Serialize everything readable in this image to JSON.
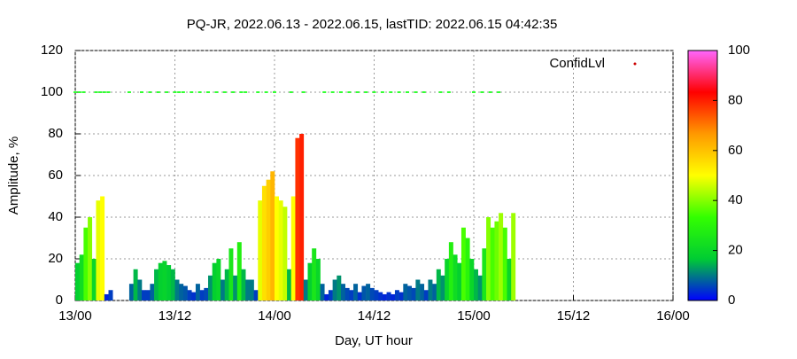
{
  "chart_data": {
    "type": "bar",
    "title": "PQ-JR, 2022.06.13 - 2022.06.15, lastTID: 2022.06.15 04:42:35",
    "xlabel": "Day, UT hour",
    "ylabel": "Amplitude, %",
    "x": [
      0,
      0.5,
      1,
      1.5,
      2,
      2.5,
      3,
      3.5,
      4,
      4.5,
      5,
      5.5,
      6,
      6.5,
      7,
      7.5,
      8,
      8.5,
      9,
      9.5,
      10,
      10.5,
      11,
      11.5,
      12,
      12.5,
      13,
      13.5,
      14,
      14.5,
      15,
      15.5,
      16,
      16.5,
      17,
      17.5,
      18,
      18.5,
      19,
      19.5,
      20,
      20.5,
      21,
      21.5,
      22,
      22.5,
      23,
      23.5,
      24,
      24.5,
      25,
      25.5,
      26,
      26.5,
      27,
      27.5,
      28,
      28.5,
      29,
      29.5,
      30,
      30.5,
      31,
      31.5,
      32,
      32.5,
      33,
      33.5,
      34,
      34.5,
      35,
      35.5,
      36,
      36.5,
      37,
      37.5,
      38,
      38.5,
      39,
      39.5,
      40,
      40.5,
      41,
      41.5,
      42,
      42.5,
      43,
      43.5,
      44,
      44.5,
      45,
      45.5,
      46,
      46.5,
      47,
      47.5,
      48,
      48.5,
      49,
      49.5,
      50,
      50.5,
      51,
      51.5,
      52,
      52.5
    ],
    "values": [
      18,
      22,
      35,
      40,
      20,
      48,
      50,
      3,
      5,
      0,
      0,
      0,
      0,
      8,
      15,
      10,
      5,
      5,
      8,
      15,
      18,
      19,
      17,
      15,
      10,
      8,
      7,
      5,
      4,
      8,
      5,
      6,
      12,
      18,
      20,
      10,
      15,
      25,
      12,
      28,
      15,
      10,
      10,
      5,
      48,
      55,
      58,
      62,
      50,
      48,
      45,
      15,
      50,
      78,
      80,
      10,
      18,
      25,
      20,
      8,
      3,
      5,
      10,
      12,
      8,
      6,
      5,
      8,
      4,
      7,
      8,
      6,
      5,
      4,
      3,
      4,
      3,
      5,
      4,
      8,
      7,
      6,
      10,
      8,
      5,
      10,
      8,
      15,
      12,
      20,
      28,
      22,
      18,
      35,
      30,
      20,
      15,
      12,
      25,
      40,
      35,
      38,
      42,
      35,
      20,
      42
    ],
    "xlim": [
      0,
      72
    ],
    "xticks": [
      {
        "value": 0,
        "label": "13/00"
      },
      {
        "value": 12,
        "label": "13/12"
      },
      {
        "value": 24,
        "label": "14/00"
      },
      {
        "value": 36,
        "label": "14/12"
      },
      {
        "value": 48,
        "label": "15/00"
      },
      {
        "value": 60,
        "label": "15/12"
      },
      {
        "value": 72,
        "label": "16/00"
      }
    ],
    "ylim": [
      0,
      120
    ],
    "yticks": [
      0,
      20,
      40,
      60,
      80,
      100,
      120
    ],
    "grid": true,
    "colorbar": {
      "lim": [
        0,
        100
      ],
      "ticks": [
        0,
        20,
        40,
        60,
        80,
        100
      ],
      "palette": [
        "#0000ff",
        "#00cc33",
        "#33ff00",
        "#ffff00",
        "#ff9900",
        "#ff0000",
        "#ff66ff"
      ]
    },
    "confidence": {
      "name": "ConfidLvl",
      "color": "#cc0000",
      "point_color": "#33ff33",
      "x": [
        0,
        0.5,
        1,
        2.5,
        3,
        3.5,
        4,
        6.5,
        8,
        9,
        10,
        11,
        12,
        12.5,
        13,
        14,
        15,
        16,
        17,
        18,
        19,
        20,
        20.5,
        22,
        23,
        24,
        26,
        27.5,
        30,
        31,
        32,
        33,
        34,
        35,
        36,
        37,
        38,
        39,
        40,
        41,
        42,
        44,
        45,
        48,
        49,
        50,
        51
      ],
      "values": [
        100,
        100,
        100,
        100,
        100,
        100,
        100,
        100,
        100,
        100,
        100,
        100,
        100,
        100,
        100,
        100,
        100,
        100,
        100,
        100,
        100,
        100,
        100,
        100,
        100,
        100,
        100,
        100,
        100,
        100,
        100,
        100,
        100,
        100,
        100,
        100,
        100,
        100,
        100,
        100,
        100,
        100,
        100,
        100,
        100,
        100,
        100
      ]
    }
  }
}
